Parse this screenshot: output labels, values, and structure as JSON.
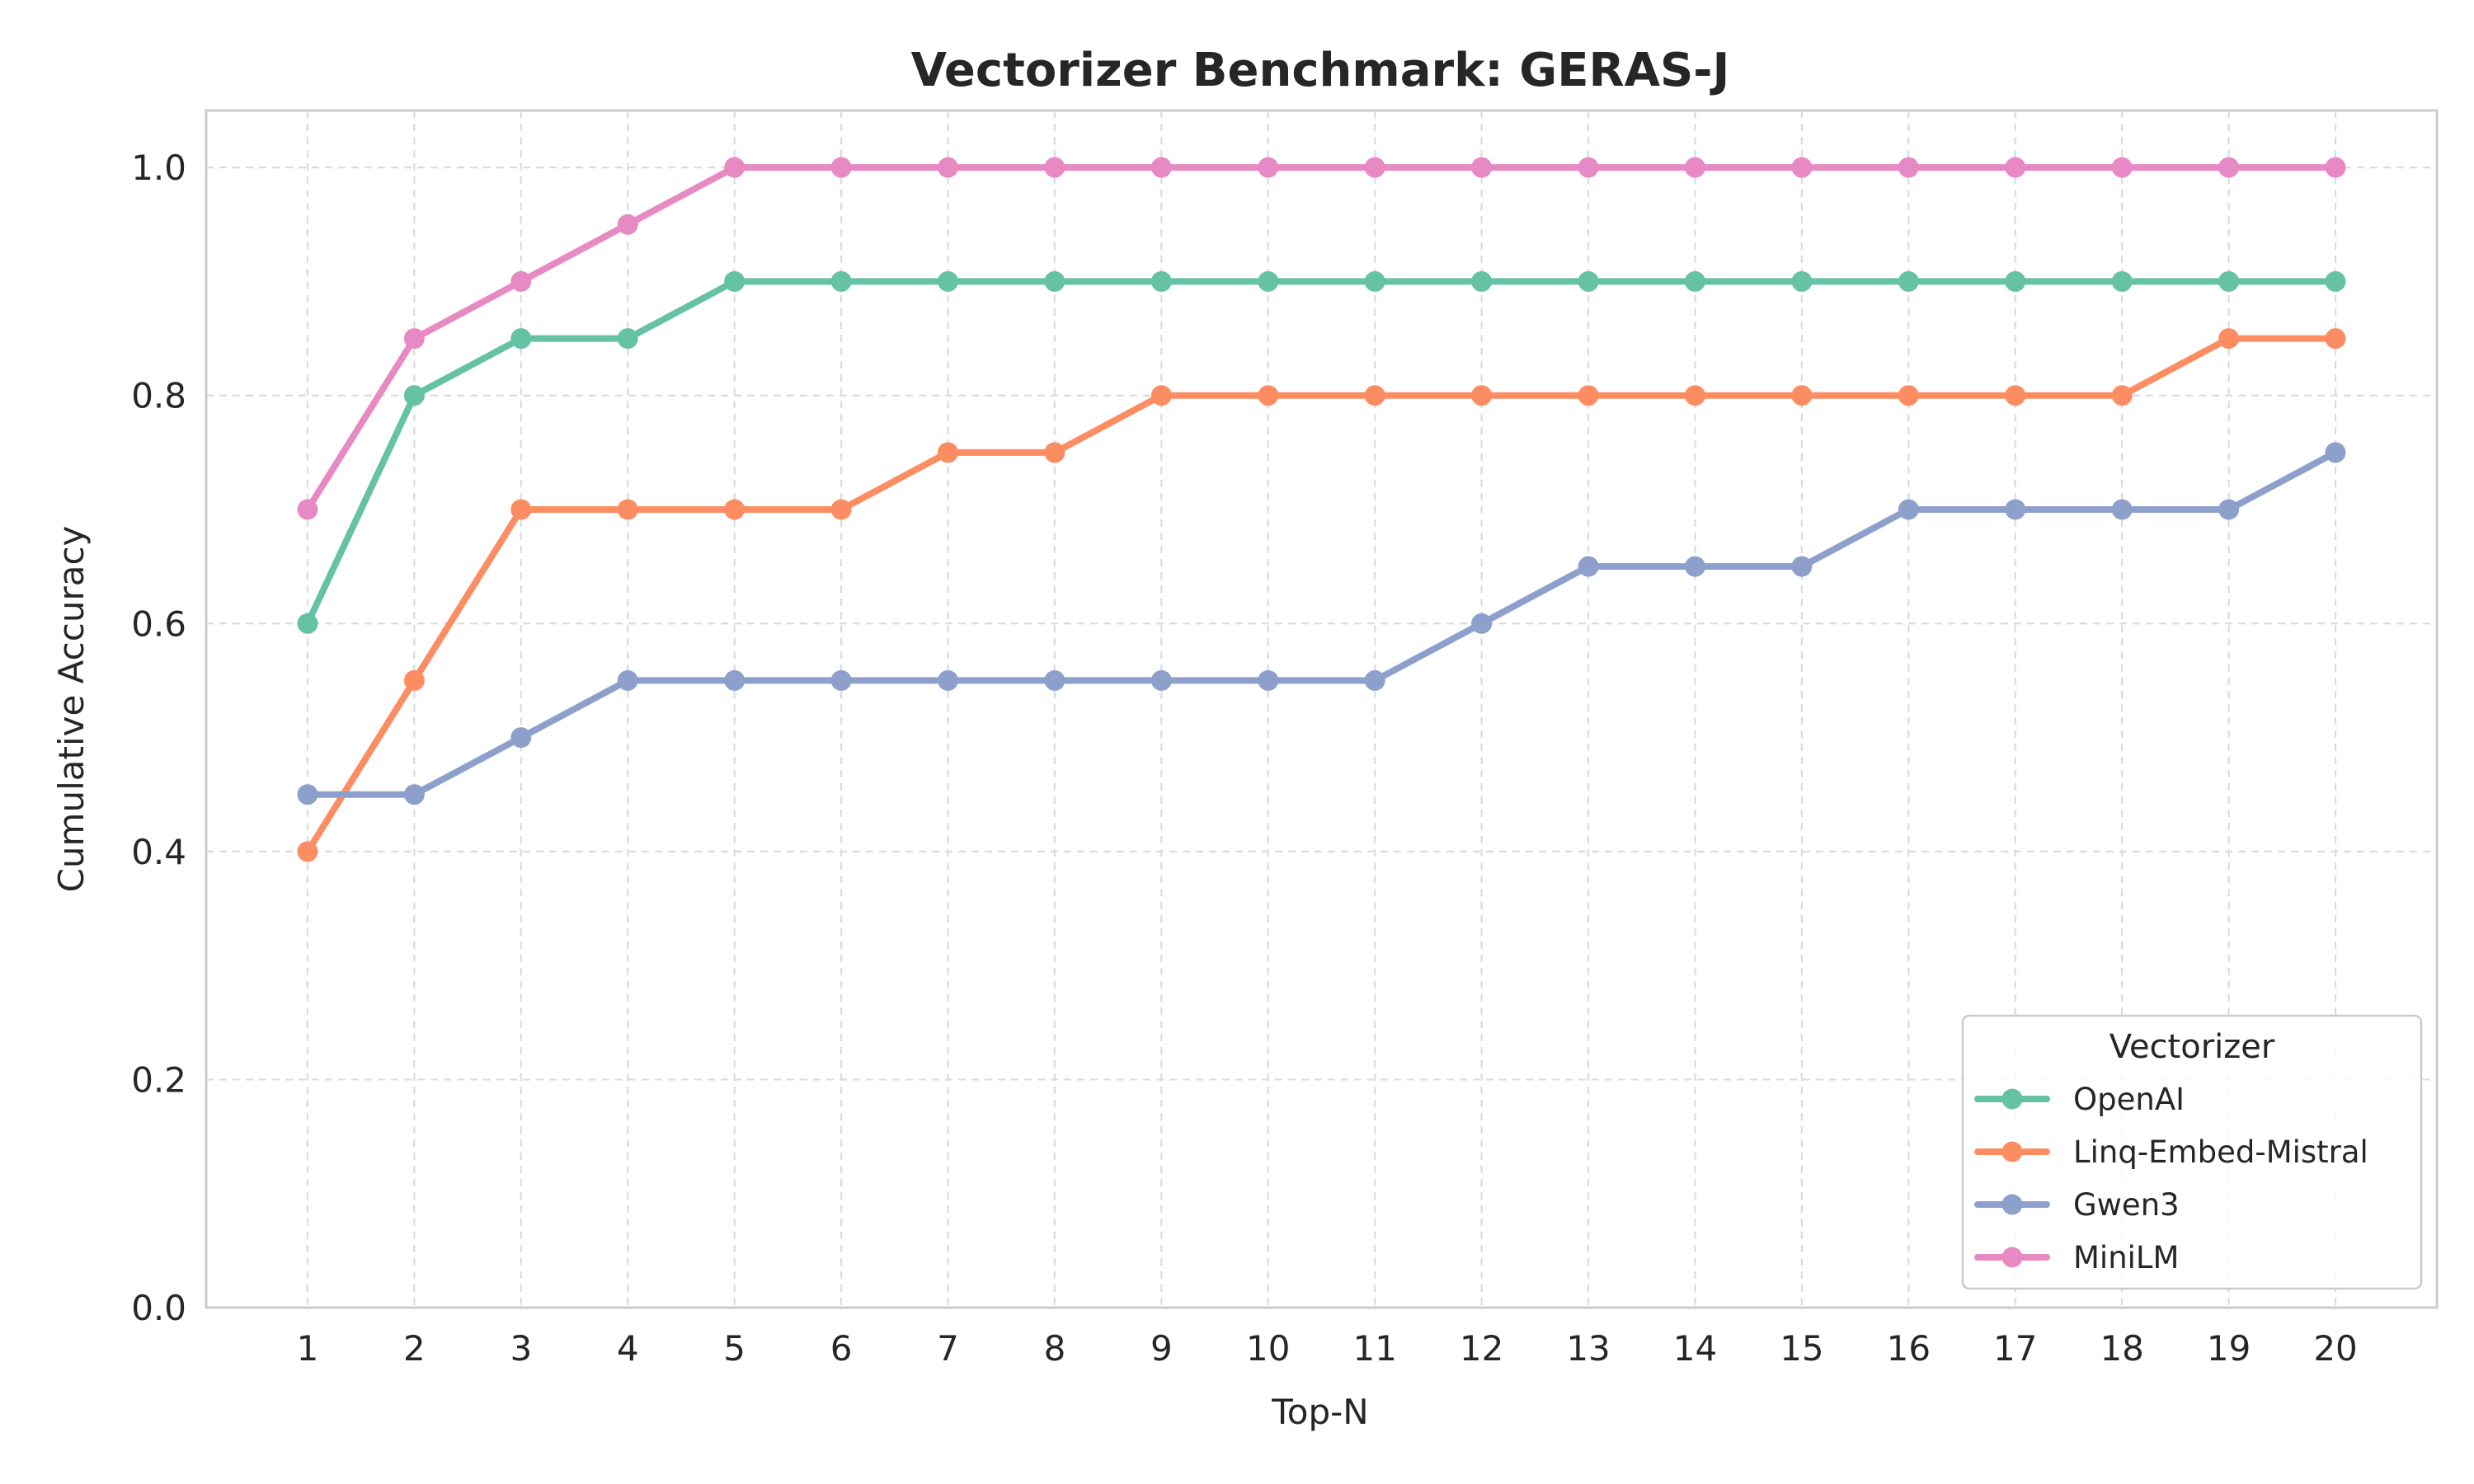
{
  "chart_data": {
    "type": "line",
    "title": "Vectorizer Benchmark: GERAS-J",
    "xlabel": "Top-N",
    "ylabel": "Cumulative Accuracy",
    "x": [
      1,
      2,
      3,
      4,
      5,
      6,
      7,
      8,
      9,
      10,
      11,
      12,
      13,
      14,
      15,
      16,
      17,
      18,
      19,
      20
    ],
    "x_tick_labels": [
      "1",
      "2",
      "3",
      "4",
      "5",
      "6",
      "7",
      "8",
      "9",
      "10",
      "11",
      "12",
      "13",
      "14",
      "15",
      "16",
      "17",
      "18",
      "19",
      "20"
    ],
    "y_tick_labels": [
      "0.0",
      "0.2",
      "0.4",
      "0.6",
      "0.8",
      "1.0"
    ],
    "y_ticks": [
      0.0,
      0.2,
      0.4,
      0.6,
      0.8,
      1.0
    ],
    "xlim": [
      0.05,
      20.95
    ],
    "ylim": [
      0.0,
      1.05
    ],
    "grid": true,
    "legend_title": "Vectorizer",
    "legend_position": "lower-right",
    "series": [
      {
        "name": "OpenAI",
        "color": "#66c2a5",
        "values": [
          0.6,
          0.8,
          0.85,
          0.85,
          0.9,
          0.9,
          0.9,
          0.9,
          0.9,
          0.9,
          0.9,
          0.9,
          0.9,
          0.9,
          0.9,
          0.9,
          0.9,
          0.9,
          0.9,
          0.9
        ]
      },
      {
        "name": "Linq-Embed-Mistral",
        "color": "#fc8d62",
        "values": [
          0.4,
          0.55,
          0.7,
          0.7,
          0.7,
          0.7,
          0.75,
          0.75,
          0.8,
          0.8,
          0.8,
          0.8,
          0.8,
          0.8,
          0.8,
          0.8,
          0.8,
          0.8,
          0.85,
          0.85
        ]
      },
      {
        "name": "Gwen3",
        "color": "#8da0cb",
        "values": [
          0.45,
          0.45,
          0.5,
          0.55,
          0.55,
          0.55,
          0.55,
          0.55,
          0.55,
          0.55,
          0.55,
          0.6,
          0.65,
          0.65,
          0.65,
          0.7,
          0.7,
          0.7,
          0.7,
          0.75
        ]
      },
      {
        "name": "MiniLM",
        "color": "#e78ac3",
        "values": [
          0.7,
          0.85,
          0.9,
          0.95,
          1.0,
          1.0,
          1.0,
          1.0,
          1.0,
          1.0,
          1.0,
          1.0,
          1.0,
          1.0,
          1.0,
          1.0,
          1.0,
          1.0,
          1.0,
          1.0
        ]
      }
    ]
  }
}
